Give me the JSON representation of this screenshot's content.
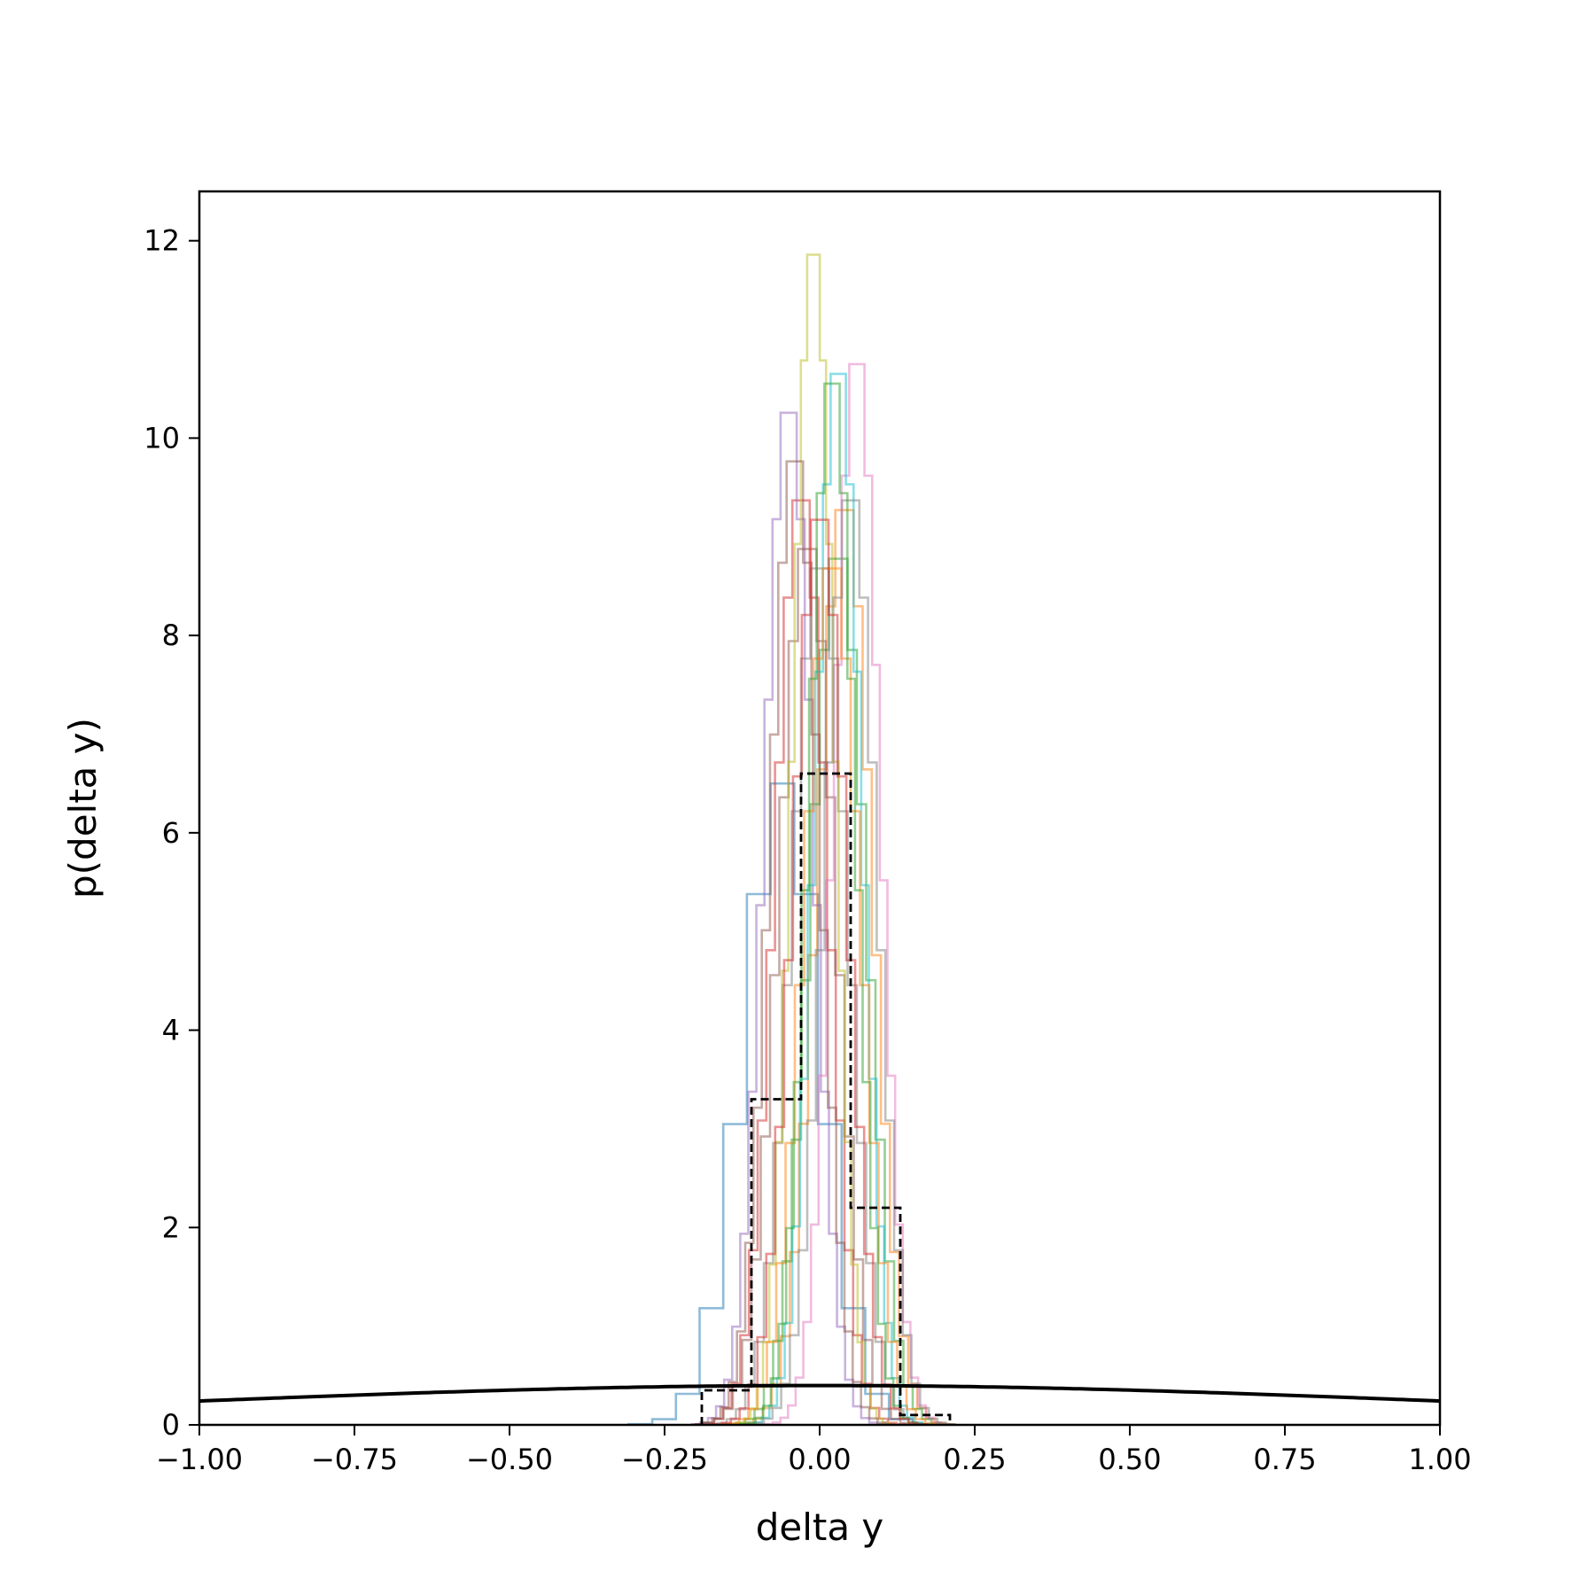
{
  "chart_data": {
    "type": "histogram",
    "xlabel": "delta y",
    "ylabel": "p(delta y)",
    "xlim": [
      -1.0,
      1.0
    ],
    "ylim": [
      0,
      12.5
    ],
    "x_ticks": [
      -1.0,
      -0.75,
      -0.5,
      -0.25,
      0.0,
      0.25,
      0.5,
      0.75,
      1.0
    ],
    "x_tick_labels": [
      "−1.00",
      "−0.75",
      "−0.50",
      "−0.25",
      "0.00",
      "0.25",
      "0.50",
      "0.75",
      "1.00"
    ],
    "y_ticks": [
      0,
      2,
      4,
      6,
      8,
      10,
      12
    ],
    "y_tick_labels": [
      "0",
      "2",
      "4",
      "6",
      "8",
      "10",
      "12"
    ],
    "grid": false,
    "colors": [
      "#1f77b4",
      "#ff7f0e",
      "#2ca02c",
      "#d62728",
      "#9467bd",
      "#8c564b",
      "#e377c2",
      "#7f7f7f",
      "#bcbd22",
      "#17becf"
    ],
    "posterior_histograms": [
      {
        "mean": -0.06,
        "peak": 6.5,
        "sigma": 0.062,
        "bins": 13,
        "color": "#1f77b4"
      },
      {
        "mean": 0.04,
        "peak": 9.4,
        "sigma": 0.044,
        "bins": 24,
        "color": "#ff7f0e"
      },
      {
        "mean": 0.03,
        "peak": 8.9,
        "sigma": 0.045,
        "bins": 24,
        "color": "#2ca02c"
      },
      {
        "mean": -0.03,
        "peak": 9.5,
        "sigma": 0.042,
        "bins": 24,
        "color": "#d62728"
      },
      {
        "mean": -0.05,
        "peak": 10.4,
        "sigma": 0.039,
        "bins": 24,
        "color": "#9467bd"
      },
      {
        "mean": -0.02,
        "peak": 9.0,
        "sigma": 0.045,
        "bins": 24,
        "color": "#8c564b"
      },
      {
        "mean": 0.06,
        "peak": 10.9,
        "sigma": 0.037,
        "bins": 24,
        "color": "#e377c2"
      },
      {
        "mean": 0.0,
        "peak": 8.8,
        "sigma": 0.045,
        "bins": 24,
        "color": "#7f7f7f"
      },
      {
        "mean": -0.01,
        "peak": 12.0,
        "sigma": 0.033,
        "bins": 26,
        "color": "#bcbd22"
      },
      {
        "mean": 0.03,
        "peak": 10.8,
        "sigma": 0.037,
        "bins": 24,
        "color": "#17becf"
      },
      {
        "mean": 0.02,
        "peak": 8.8,
        "sigma": 0.045,
        "bins": 24,
        "color": "#ff7f0e"
      },
      {
        "mean": -0.04,
        "peak": 9.9,
        "sigma": 0.04,
        "bins": 24,
        "color": "#8c564b"
      },
      {
        "mean": 0.05,
        "peak": 9.5,
        "sigma": 0.042,
        "bins": 24,
        "color": "#7f7f7f"
      },
      {
        "mean": 0.02,
        "peak": 10.7,
        "sigma": 0.037,
        "bins": 24,
        "color": "#2ca02c"
      },
      {
        "mean": 0.0,
        "peak": 9.3,
        "sigma": 0.043,
        "bins": 24,
        "color": "#d62728"
      }
    ],
    "dashed_histogram": {
      "color": "#000000",
      "edges": [
        -0.19,
        -0.11,
        -0.03,
        0.05,
        0.13,
        0.21
      ],
      "values": [
        0.35,
        3.3,
        6.6,
        2.2,
        0.1
      ]
    },
    "prior_curve": {
      "type": "normal_pdf",
      "mean": 0.0,
      "sigma": 1.0,
      "color": "#000000"
    }
  }
}
